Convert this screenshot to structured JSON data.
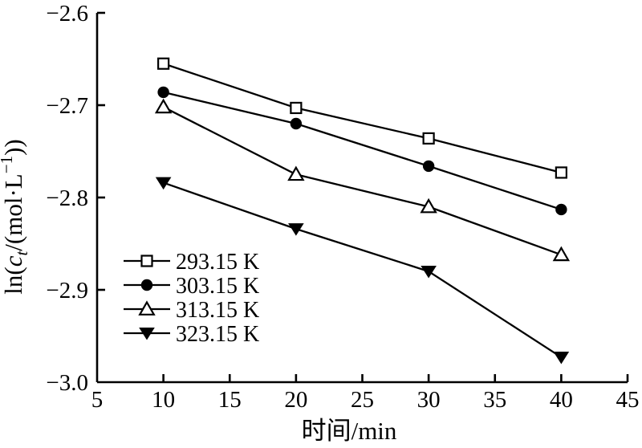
{
  "figure": {
    "background": "#ffffff",
    "ink_color": "#000000"
  },
  "chart_data": {
    "type": "line",
    "title": "",
    "xlabel": "时间/min",
    "ylabel": "ln(c_t/(mol·L⁻¹))",
    "ylabel_parts": {
      "prefix": "ln(",
      "italic_var": "c",
      "subscript": "t",
      "mid": "/(mol·L",
      "superscript": "−1",
      "suffix": "))"
    },
    "x": [
      10,
      20,
      30,
      40
    ],
    "series": [
      {
        "name": "293.15 K",
        "marker": "square-open",
        "values": [
          -2.655,
          -2.703,
          -2.736,
          -2.773
        ]
      },
      {
        "name": "303.15 K",
        "marker": "circle-filled",
        "values": [
          -2.686,
          -2.72,
          -2.766,
          -2.813
        ]
      },
      {
        "name": "313.15 K",
        "marker": "triangle-up-open",
        "values": [
          -2.702,
          -2.775,
          -2.81,
          -2.862
        ]
      },
      {
        "name": "323.15 K",
        "marker": "triangle-down-filled",
        "values": [
          -2.784,
          -2.834,
          -2.88,
          -2.973
        ]
      }
    ],
    "xlim": [
      5,
      45
    ],
    "ylim": [
      -3.0,
      -2.6
    ],
    "x_ticks": [
      5,
      10,
      15,
      20,
      25,
      30,
      35,
      40,
      45
    ],
    "y_ticks": [
      -3.0,
      -2.9,
      -2.8,
      -2.7,
      -2.6
    ],
    "y_tick_decimals": 1,
    "grid": false,
    "legend": {
      "position": "lower-left",
      "entries": [
        "293.15 K",
        "303.15 K",
        "313.15 K",
        "323.15 K"
      ]
    },
    "line_color": "#000000"
  }
}
